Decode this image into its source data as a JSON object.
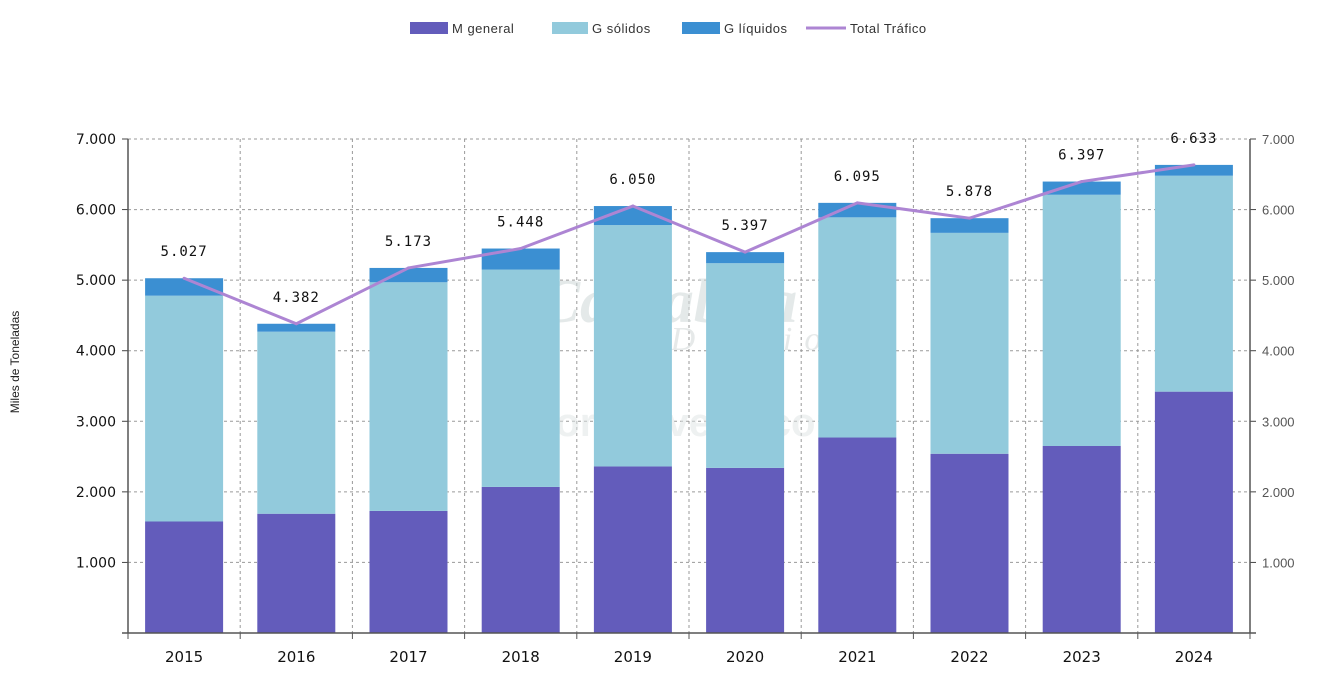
{
  "chart_data": {
    "type": "bar",
    "stacked": true,
    "categories": [
      "2015",
      "2016",
      "2017",
      "2018",
      "2019",
      "2020",
      "2021",
      "2022",
      "2023",
      "2024"
    ],
    "series": [
      {
        "name": "M general",
        "kind": "bar",
        "color": "#635cbb",
        "values": [
          1580,
          1690,
          1730,
          2070,
          2360,
          2340,
          2770,
          2540,
          2650,
          3420
        ]
      },
      {
        "name": "G sólidos",
        "kind": "bar",
        "color": "#92cadc",
        "values": [
          3200,
          2580,
          3240,
          3080,
          3420,
          2900,
          3120,
          3130,
          3560,
          3060
        ]
      },
      {
        "name": "G líquidos",
        "kind": "bar",
        "color": "#3b8fd2",
        "values": [
          247,
          112,
          203,
          298,
          270,
          157,
          205,
          208,
          187,
          153
        ]
      },
      {
        "name": "Total Tráfico",
        "kind": "line",
        "color": "#ad85d3",
        "values": [
          5027,
          4382,
          5173,
          5448,
          6050,
          5397,
          6095,
          5878,
          6397,
          6633
        ]
      }
    ],
    "data_labels": [
      "5.027",
      "4.382",
      "5.173",
      "5.448",
      "6.050",
      "5.397",
      "6.095",
      "5.878",
      "6.397",
      "6.633"
    ],
    "y_ticks": [
      "1.000",
      "2.000",
      "3.000",
      "4.000",
      "5.000",
      "6.000",
      "7.000"
    ],
    "ylabel": "Miles de Toneladas",
    "ylim": [
      0,
      7000
    ],
    "grid": true,
    "legend_position": "top-center",
    "secondary_axis": true
  },
  "watermark": {
    "line1": "Cantabria",
    "line2": "Diario",
    "line3": "EsTorrelavega.com"
  }
}
